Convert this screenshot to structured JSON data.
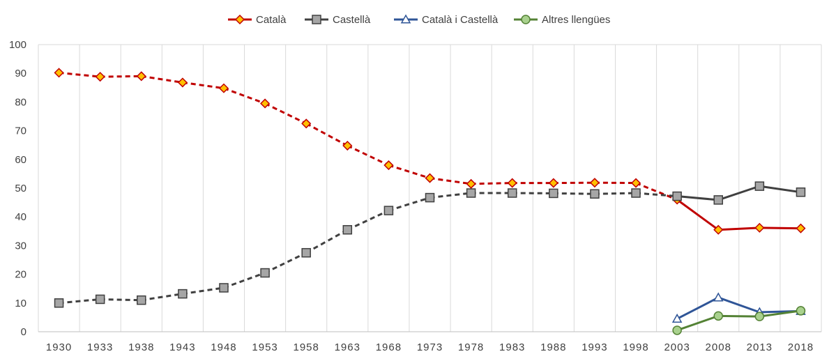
{
  "chart_data": {
    "type": "line",
    "title": "",
    "xlabel": "",
    "ylabel": "",
    "categories": [
      "1930",
      "1933",
      "1938",
      "1943",
      "1948",
      "1953",
      "1958",
      "1963",
      "1968",
      "1973",
      "1978",
      "1983",
      "1988",
      "1993",
      "1998",
      "2003",
      "2008",
      "2013",
      "2018"
    ],
    "yticks": [
      "0",
      "10",
      "20",
      "30",
      "40",
      "50",
      "60",
      "70",
      "80",
      "90",
      "100"
    ],
    "ylim": [
      0,
      100
    ],
    "grid": "vertical",
    "legend_position": "top-center",
    "series": [
      {
        "name": "Català",
        "color": "#c00000",
        "marker": "diamond",
        "marker_fill": "#ffc000",
        "values": [
          90.2,
          88.8,
          89.0,
          86.8,
          84.8,
          79.5,
          72.5,
          64.8,
          58.0,
          53.5,
          51.5,
          51.8,
          51.8,
          51.9,
          51.8,
          46.0,
          35.5,
          36.2,
          36.0
        ],
        "dashed_until_index": 15
      },
      {
        "name": "Castellà",
        "color": "#404040",
        "marker": "square",
        "marker_fill": "#a6a6a6",
        "values": [
          10.0,
          11.3,
          11.0,
          13.2,
          15.3,
          20.5,
          27.5,
          35.5,
          42.2,
          46.7,
          48.3,
          48.3,
          48.2,
          48.0,
          48.3,
          47.2,
          45.9,
          50.7,
          48.6
        ],
        "dashed_until_index": 15
      },
      {
        "name": "Català i Castellà",
        "color": "#2f5597",
        "marker": "triangle",
        "marker_fill": "#ffffff",
        "values": [
          null,
          null,
          null,
          null,
          null,
          null,
          null,
          null,
          null,
          null,
          null,
          null,
          null,
          null,
          null,
          4.5,
          11.9,
          6.8,
          7.2
        ],
        "dashed_until_index": null
      },
      {
        "name": "Altres llengües",
        "color": "#548235",
        "marker": "circle",
        "marker_fill": "#a9d18e",
        "values": [
          null,
          null,
          null,
          null,
          null,
          null,
          null,
          null,
          null,
          null,
          null,
          null,
          null,
          null,
          null,
          0.5,
          5.5,
          5.3,
          7.3
        ],
        "dashed_until_index": null
      }
    ]
  }
}
